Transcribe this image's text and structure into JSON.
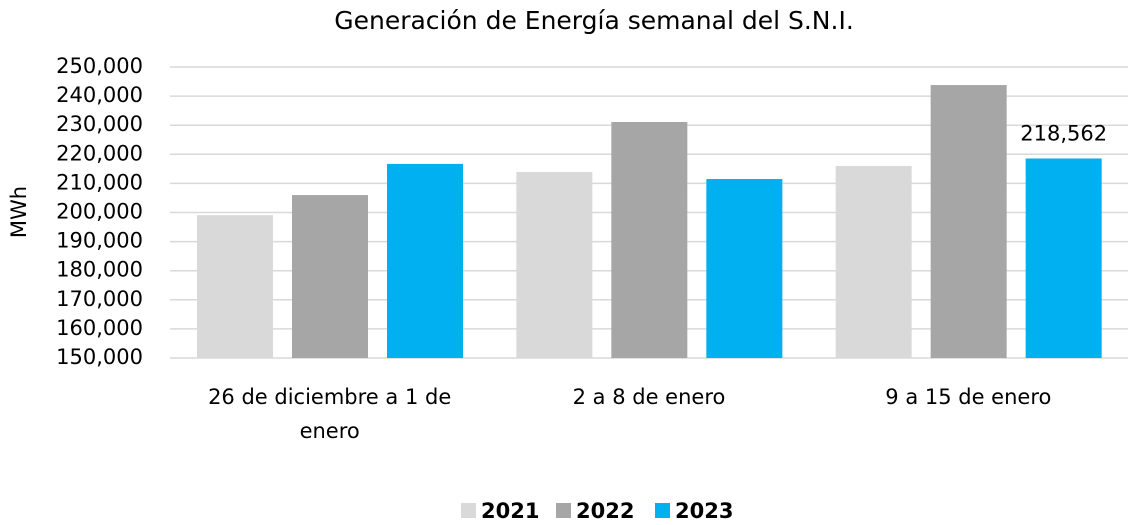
{
  "chart_data": {
    "type": "bar",
    "title": "Generación de Energía semanal del S.N.I.",
    "ylabel": "MWh",
    "categories": [
      "26 de diciembre a 1 de enero",
      "2 a 8 de enero",
      "9 a 15 de enero"
    ],
    "series": [
      {
        "name": "2021",
        "color": "#d9d9d9",
        "values": [
          199100,
          213900,
          216000
        ]
      },
      {
        "name": "2022",
        "color": "#a6a6a6",
        "values": [
          206000,
          231100,
          243800
        ]
      },
      {
        "name": "2023",
        "color": "#00b0f0",
        "values": [
          216700,
          211500,
          218562
        ],
        "value_labels": [
          null,
          null,
          "218,562"
        ]
      }
    ],
    "ylim": [
      150000,
      250000
    ],
    "yticks": [
      {
        "value": 150000,
        "label": "150,000"
      },
      {
        "value": 160000,
        "label": "160,000"
      },
      {
        "value": 170000,
        "label": "170,000"
      },
      {
        "value": 180000,
        "label": "180,000"
      },
      {
        "value": 190000,
        "label": "190,000"
      },
      {
        "value": 200000,
        "label": "200,000"
      },
      {
        "value": 210000,
        "label": "210,000"
      },
      {
        "value": 220000,
        "label": "220,000"
      },
      {
        "value": 230000,
        "label": "230,000"
      },
      {
        "value": 240000,
        "label": "240,000"
      },
      {
        "value": 250000,
        "label": "250,000"
      }
    ],
    "grid": true,
    "legend": "bottom"
  }
}
